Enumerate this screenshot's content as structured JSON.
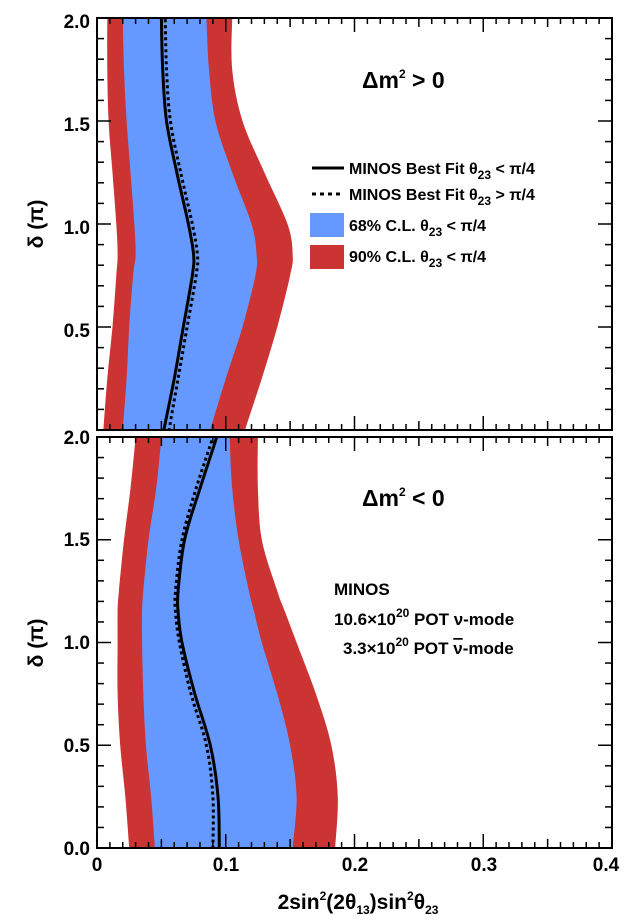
{
  "chart_data": [
    {
      "type": "area",
      "panel": "top",
      "label_text": "Δm",
      "label_sup": "2",
      "label_tail": " > 0",
      "ylabel": "δ (π)",
      "xlim": [
        0,
        0.4
      ],
      "ylim": [
        0,
        2
      ],
      "yticks": [
        "0.5",
        "1.0",
        "1.5",
        "2.0"
      ],
      "colors": {
        "cl90": "#cc3333",
        "cl68": "#6699ff",
        "line": "#000000"
      },
      "bands": {
        "cl90": {
          "y": [
            0.0,
            0.25,
            0.5,
            0.75,
            0.85,
            1.0,
            1.25,
            1.5,
            1.75,
            2.0
          ],
          "left": [
            0.005,
            0.008,
            0.012,
            0.015,
            0.016,
            0.015,
            0.012,
            0.009,
            0.008,
            0.008
          ],
          "right": [
            0.115,
            0.128,
            0.14,
            0.15,
            0.152,
            0.148,
            0.13,
            0.113,
            0.105,
            0.105
          ]
        },
        "cl68": {
          "y": [
            0.0,
            0.25,
            0.5,
            0.75,
            0.85,
            1.0,
            1.25,
            1.5,
            1.75,
            2.0
          ],
          "left": [
            0.02,
            0.023,
            0.025,
            0.028,
            0.03,
            0.029,
            0.026,
            0.023,
            0.021,
            0.02
          ],
          "right": [
            0.088,
            0.1,
            0.113,
            0.123,
            0.124,
            0.12,
            0.105,
            0.092,
            0.087,
            0.085
          ]
        }
      },
      "best_fit": {
        "lower_octant": {
          "y": [
            0.0,
            0.25,
            0.5,
            0.75,
            0.85,
            1.0,
            1.25,
            1.5,
            1.75,
            2.0
          ],
          "x": [
            0.052,
            0.06,
            0.067,
            0.074,
            0.075,
            0.071,
            0.062,
            0.054,
            0.051,
            0.05
          ]
        },
        "upper_octant": {
          "y": [
            0.0,
            0.25,
            0.5,
            0.75,
            0.85,
            1.0,
            1.25,
            1.5,
            1.75,
            2.0
          ],
          "x": [
            0.056,
            0.063,
            0.07,
            0.077,
            0.078,
            0.074,
            0.065,
            0.057,
            0.054,
            0.053
          ]
        }
      },
      "legend": [
        {
          "style": "solid",
          "text": "MINOS Best Fit θ",
          "sub": "23",
          "tail": " < π/4"
        },
        {
          "style": "dotted",
          "text": "MINOS Best Fit θ",
          "sub": "23",
          "tail": " > π/4"
        },
        {
          "style": "cl68",
          "text": "68% C.L. θ",
          "sub": "23",
          "tail": " < π/4"
        },
        {
          "style": "cl90",
          "text": "90% C.L. θ",
          "sub": "23",
          "tail": " < π/4"
        }
      ]
    },
    {
      "type": "area",
      "panel": "bottom",
      "label_text": "Δm",
      "label_sup": "2",
      "label_tail": " < 0",
      "ylabel": "δ (π)",
      "xlim": [
        0,
        0.4
      ],
      "ylim": [
        0,
        2
      ],
      "yticks": [
        "0.0",
        "0.5",
        "1.0",
        "1.5",
        "2.0"
      ],
      "xticks": [
        "0",
        "0.1",
        "0.2",
        "0.3",
        "0.4"
      ],
      "xlabel_parts": {
        "a": "2sin",
        "sup1": "2",
        "b": "(2θ",
        "sub1": "13",
        "c": ")sin",
        "sup2": "2",
        "d": "θ",
        "sub2": "23"
      },
      "bands": {
        "cl90": {
          "y": [
            0.0,
            0.25,
            0.5,
            0.75,
            1.0,
            1.15,
            1.25,
            1.5,
            1.75,
            2.0
          ],
          "left": [
            0.025,
            0.022,
            0.018,
            0.016,
            0.016,
            0.016,
            0.017,
            0.021,
            0.026,
            0.03
          ],
          "right": [
            0.185,
            0.187,
            0.182,
            0.17,
            0.155,
            0.146,
            0.14,
            0.128,
            0.125,
            0.125
          ]
        },
        "cl68": {
          "y": [
            0.0,
            0.25,
            0.5,
            0.75,
            1.0,
            1.15,
            1.25,
            1.5,
            1.75,
            2.0
          ],
          "left": [
            0.045,
            0.042,
            0.038,
            0.036,
            0.035,
            0.035,
            0.036,
            0.04,
            0.046,
            0.05
          ],
          "right": [
            0.152,
            0.155,
            0.15,
            0.14,
            0.128,
            0.122,
            0.118,
            0.11,
            0.105,
            0.103
          ]
        }
      },
      "best_fit": {
        "lower_octant": {
          "y": [
            0.0,
            0.25,
            0.5,
            0.75,
            1.0,
            1.15,
            1.25,
            1.5,
            1.75,
            2.0
          ],
          "x": [
            0.095,
            0.094,
            0.088,
            0.076,
            0.066,
            0.063,
            0.063,
            0.068,
            0.08,
            0.093
          ]
        },
        "upper_octant": {
          "y": [
            0.0,
            0.25,
            0.5,
            0.75,
            1.0,
            1.15,
            1.25,
            1.5,
            1.75,
            2.0
          ],
          "x": [
            0.09,
            0.09,
            0.085,
            0.073,
            0.064,
            0.061,
            0.061,
            0.066,
            0.077,
            0.09
          ]
        }
      },
      "info": {
        "line1": "MINOS",
        "line2_a": "10.6×10",
        "line2_sup": "20",
        "line2_b": " POT ν-mode",
        "line3_a": "3.3×10",
        "line3_sup": "20",
        "line3_b": " POT ",
        "line3_nu": "ν",
        "line3_c": "-mode"
      }
    }
  ]
}
